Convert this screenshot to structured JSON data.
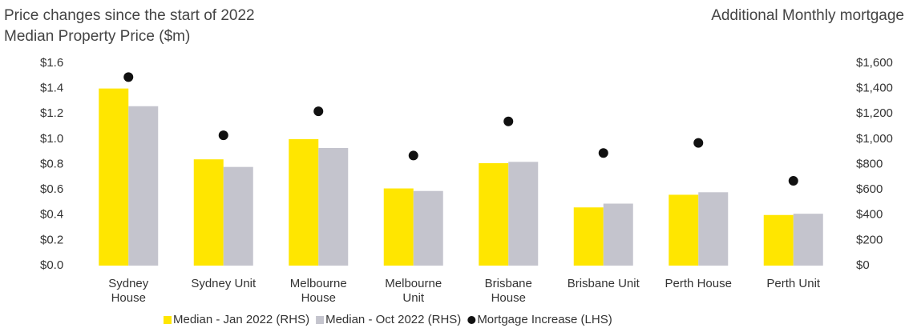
{
  "chart_data": {
    "type": "bar",
    "title": "Price changes since the start of 2022",
    "y_label": "Median Property Price ($m)",
    "y2_label": "Additional Monthly mortgage",
    "categories": [
      "Sydney\nHouse",
      "Sydney Unit",
      "Melbourne\nHouse",
      "Melbourne\nUnit",
      "Brisbane\nHouse",
      "Brisbane Unit",
      "Perth House",
      "Perth Unit"
    ],
    "series": [
      {
        "name": "Median - Jan 2022 (RHS)",
        "color": "#ffe600",
        "type": "bar",
        "values": [
          1.4,
          0.84,
          1.0,
          0.61,
          0.81,
          0.46,
          0.56,
          0.4
        ]
      },
      {
        "name": "Median - Oct 2022 (RHS)",
        "color": "#c4c4cd",
        "type": "bar",
        "values": [
          1.26,
          0.78,
          0.93,
          0.59,
          0.82,
          0.49,
          0.58,
          0.41
        ]
      },
      {
        "name": "Mortgage Increase (LHS)",
        "color": "#111111",
        "type": "scatter",
        "axis": "y2",
        "values": [
          1490,
          1030,
          1220,
          870,
          1140,
          890,
          970,
          670
        ]
      }
    ],
    "ylim": [
      0,
      1.6
    ],
    "yticks": [
      {
        "value": 0,
        "label": "$0.0"
      },
      {
        "value": 0.2,
        "label": "$0.2"
      },
      {
        "value": 0.4,
        "label": "$0.4"
      },
      {
        "value": 0.6,
        "label": "$0.6"
      },
      {
        "value": 0.8,
        "label": "$0.8"
      },
      {
        "value": 1.0,
        "label": "$1.0"
      },
      {
        "value": 1.2,
        "label": "$1.2"
      },
      {
        "value": 1.4,
        "label": "$1.4"
      },
      {
        "value": 1.6,
        "label": "$1.6"
      }
    ],
    "y2lim": [
      0,
      1600
    ],
    "y2ticks": [
      {
        "value": 0,
        "label": "$0"
      },
      {
        "value": 200,
        "label": "$200"
      },
      {
        "value": 400,
        "label": "$400"
      },
      {
        "value": 600,
        "label": "$600"
      },
      {
        "value": 800,
        "label": "$800"
      },
      {
        "value": 1000,
        "label": "$1,000"
      },
      {
        "value": 1200,
        "label": "$1,200"
      },
      {
        "value": 1400,
        "label": "$1,400"
      },
      {
        "value": 1600,
        "label": "$1,600"
      }
    ],
    "grid": false,
    "legend": "bottom"
  }
}
